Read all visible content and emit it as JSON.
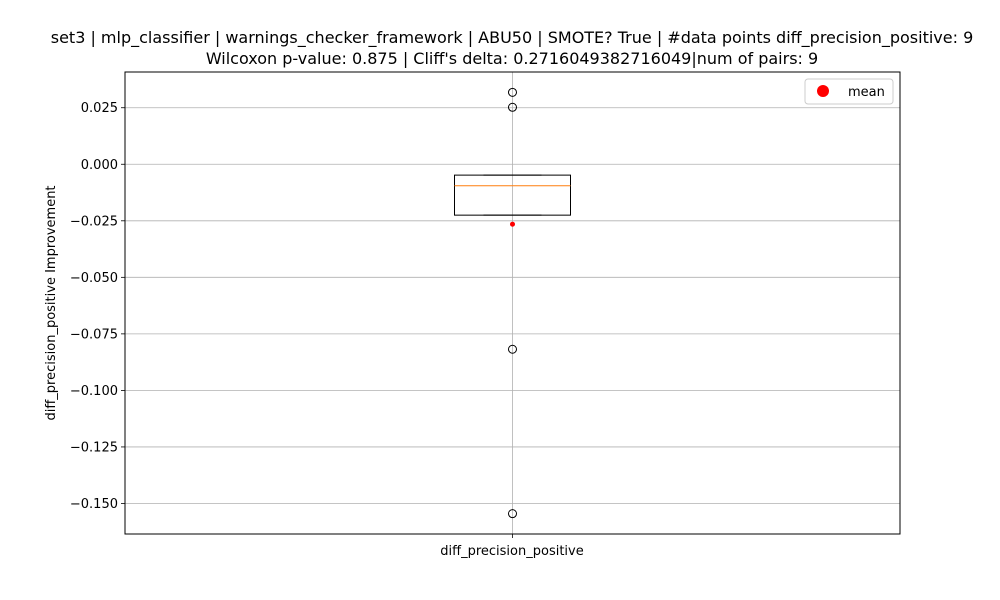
{
  "chart_data": {
    "type": "box",
    "title_line1": "set3 | mlp_classifier | warnings_checker_framework | ABU50 | SMOTE? True | #data points diff_precision_positive: 9",
    "title_line2": "Wilcoxon p-value: 0.875 | Cliff's delta: 0.2716049382716049|num of pairs: 9",
    "xlabel": "",
    "ylabel": "diff_precision_positive Improvement",
    "categories": [
      "diff_precision_positive"
    ],
    "ylim": [
      -0.1635,
      0.0408
    ],
    "yticks": [
      0.025,
      0.0,
      -0.025,
      -0.05,
      -0.075,
      -0.1,
      -0.125,
      -0.15
    ],
    "ytick_labels": [
      "0.025",
      "0.000",
      "−0.025",
      "−0.050",
      "−0.075",
      "−0.100",
      "−0.125",
      "−0.150"
    ],
    "grid": true,
    "legend": {
      "position": "top-right",
      "entries": [
        {
          "label": "mean",
          "color": "#ff0000"
        }
      ]
    },
    "box": {
      "whisker_low": -0.0225,
      "q1": -0.0225,
      "median": -0.0095,
      "q3": -0.0048,
      "whisker_high": -0.0048,
      "mean": -0.0265,
      "outliers": [
        0.0318,
        0.0252,
        -0.0818,
        -0.1545
      ]
    },
    "colors": {
      "median": "#ff7f0e",
      "mean": "#ff0000",
      "grid": "#b0b0b0",
      "box": "#000000"
    }
  }
}
